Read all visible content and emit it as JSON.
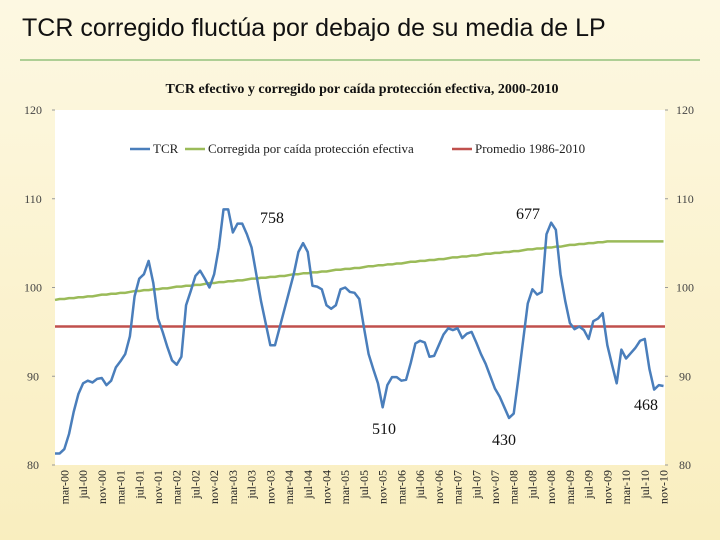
{
  "slide_title": "TCR corregido fluctúa por debajo de su media de LP",
  "chart_data": {
    "type": "line",
    "title": "TCR efectivo y corregido por caída protección efectiva, 2000-2010",
    "categories": [
      null,
      null,
      "mar-00",
      null,
      null,
      null,
      "jul-00",
      null,
      null,
      null,
      "nov-00",
      null,
      null,
      null,
      "mar-01",
      null,
      null,
      null,
      "jul-01",
      null,
      null,
      null,
      "nov-01",
      null,
      null,
      null,
      "mar-02",
      null,
      null,
      null,
      "jul-02",
      null,
      null,
      null,
      "nov-02",
      null,
      null,
      null,
      "mar-03",
      null,
      null,
      null,
      "jul-03",
      null,
      null,
      null,
      "nov-03",
      null,
      null,
      null,
      "mar-04",
      null,
      null,
      null,
      "jul-04",
      null,
      null,
      null,
      "nov-04",
      null,
      null,
      null,
      "mar-05",
      null,
      null,
      null,
      "jul-05",
      null,
      null,
      null,
      "nov-05",
      null,
      null,
      null,
      "mar-06",
      null,
      null,
      null,
      "jul-06",
      null,
      null,
      null,
      "nov-06",
      null,
      null,
      null,
      "mar-07",
      null,
      null,
      null,
      "jul-07",
      null,
      null,
      null,
      "nov-07",
      null,
      null,
      null,
      "mar-08",
      null,
      null,
      null,
      "jul-08",
      null,
      null,
      null,
      "nov-08",
      null,
      null,
      null,
      "mar-09",
      null,
      null,
      null,
      "jul-09",
      null,
      null,
      null,
      "nov-09",
      null,
      null,
      null,
      "mar-10",
      null,
      null,
      null,
      "jul-10",
      null,
      null,
      null,
      "nov-10"
    ],
    "series": [
      {
        "name": "TCR",
        "color": "#4a7ebb",
        "values": [
          81.3,
          81.3,
          81.8,
          83.5,
          86,
          88,
          89.2,
          89.5,
          89.3,
          89.7,
          89.8,
          89,
          89.5,
          91,
          91.7,
          92.5,
          94.5,
          99,
          101,
          101.5,
          103,
          100.5,
          96.5,
          95,
          93.3,
          91.8,
          91.3,
          92.2,
          98,
          99.6,
          101.3,
          101.9,
          101,
          100,
          101.5,
          104.5,
          108.8,
          108.8,
          106.2,
          107.2,
          107.2,
          106,
          104.5,
          101.5,
          98.5,
          96,
          93.5,
          93.5,
          95.5,
          97.5,
          99.5,
          101.5,
          104,
          105,
          104,
          100.2,
          100.1,
          99.8,
          98,
          97.6,
          98,
          99.8,
          100,
          99.5,
          99.4,
          98.7,
          95.5,
          92.5,
          90.8,
          89.2,
          86.5,
          89,
          89.9,
          89.9,
          89.5,
          89.6,
          91.5,
          93.7,
          94,
          93.8,
          92.2,
          92.3,
          93.5,
          94.7,
          95.4,
          95.2,
          95.4,
          94.3,
          94.8,
          95,
          93.8,
          92.5,
          91.4,
          90,
          88.6,
          87.7,
          86.5,
          85.3,
          85.8,
          89.8,
          94,
          98.2,
          99.8,
          99.2,
          99.5,
          106,
          107.3,
          106.5,
          101.5,
          98.5,
          96,
          95.3,
          95.6,
          95.2,
          94.2,
          96.2,
          96.5,
          97.1,
          93.5,
          91.3,
          89.2,
          93,
          92,
          92.6,
          93.2,
          94,
          94.2,
          90.8,
          88.5,
          89,
          88.9
        ]
      },
      {
        "name": "Corregida por caída protección efectiva",
        "color": "#9bbb59",
        "values": [
          98.6,
          98.7,
          98.7,
          98.8,
          98.8,
          98.9,
          98.9,
          99.0,
          99.0,
          99.1,
          99.2,
          99.2,
          99.3,
          99.3,
          99.4,
          99.4,
          99.5,
          99.6,
          99.6,
          99.7,
          99.7,
          99.8,
          99.8,
          99.9,
          99.9,
          100.0,
          100.1,
          100.1,
          100.2,
          100.2,
          100.3,
          100.3,
          100.4,
          100.5,
          100.5,
          100.6,
          100.6,
          100.7,
          100.7,
          100.8,
          100.8,
          100.9,
          101.0,
          101.0,
          101.1,
          101.1,
          101.2,
          101.2,
          101.3,
          101.3,
          101.4,
          101.5,
          101.5,
          101.6,
          101.6,
          101.7,
          101.7,
          101.8,
          101.8,
          101.9,
          102.0,
          102.0,
          102.1,
          102.1,
          102.2,
          102.2,
          102.3,
          102.4,
          102.4,
          102.5,
          102.5,
          102.6,
          102.6,
          102.7,
          102.7,
          102.8,
          102.9,
          102.9,
          103.0,
          103.0,
          103.1,
          103.1,
          103.2,
          103.2,
          103.3,
          103.4,
          103.4,
          103.5,
          103.5,
          103.6,
          103.6,
          103.7,
          103.8,
          103.8,
          103.9,
          103.9,
          104.0,
          104.0,
          104.1,
          104.1,
          104.2,
          104.3,
          104.3,
          104.4,
          104.4,
          104.5,
          104.5,
          104.6,
          104.6,
          104.7,
          104.8,
          104.8,
          104.9,
          104.9,
          105.0,
          105.0,
          105.1,
          105.1,
          105.2,
          105.2,
          105.2,
          105.2,
          105.2,
          105.2,
          105.2,
          105.2,
          105.2,
          105.2,
          105.2,
          105.2,
          105.2
        ]
      }
    ],
    "hlines": [
      {
        "name": "Promedio 1986-2010",
        "color": "#c0504d",
        "value": 95.6
      }
    ],
    "annotations": [
      "758",
      "677",
      "510",
      "430",
      "468"
    ],
    "ylim": [
      80,
      120
    ],
    "yticks": [
      80,
      90,
      100,
      110,
      120
    ],
    "y2lim": [
      80,
      120
    ],
    "y2ticks": [
      80,
      90,
      100,
      110,
      120
    ]
  }
}
